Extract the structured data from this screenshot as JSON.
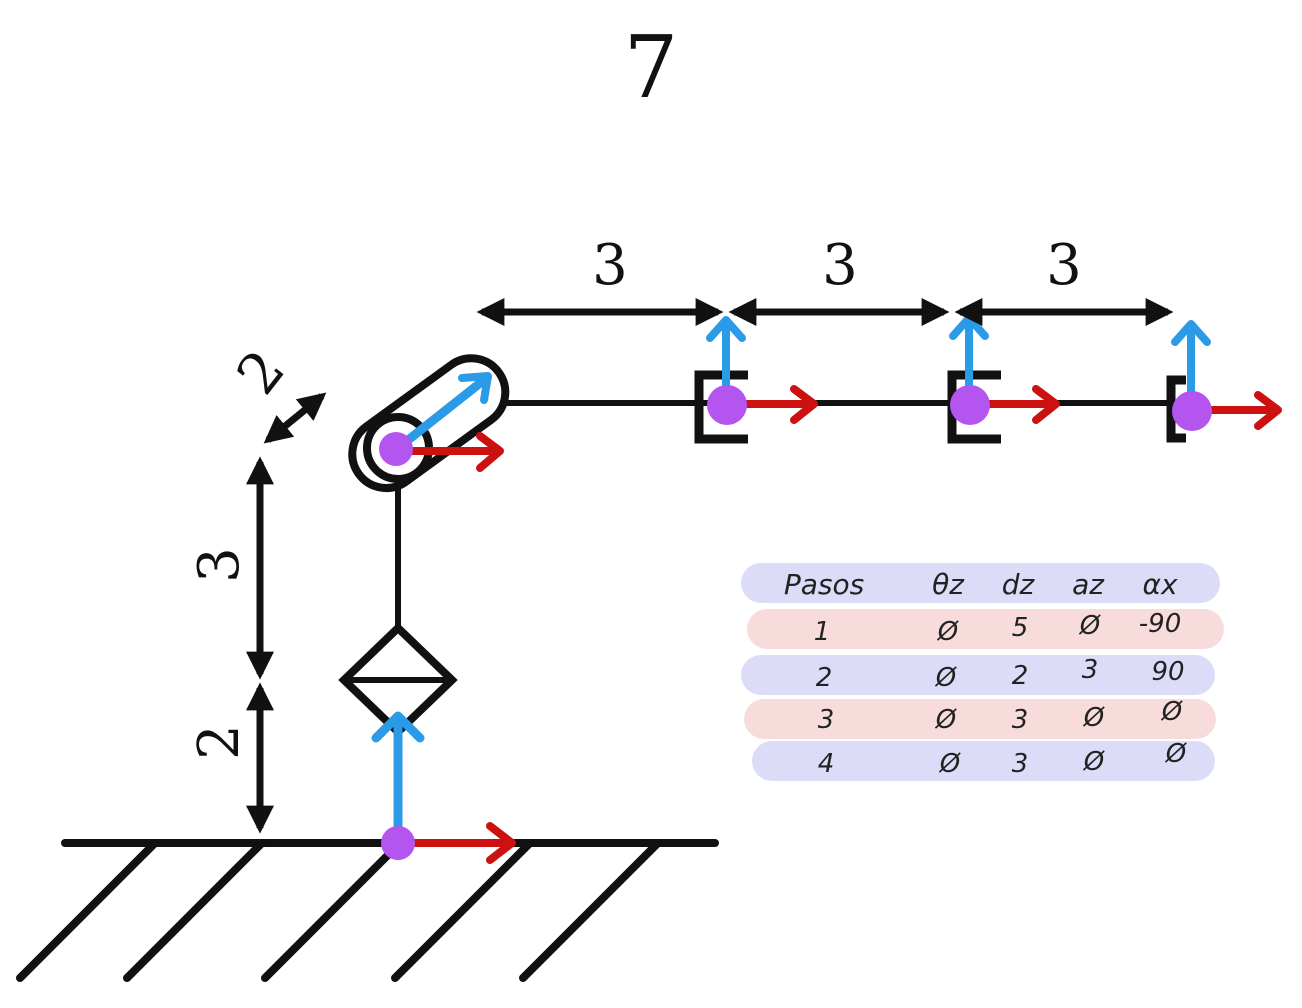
{
  "title": "7",
  "dimensions": {
    "link1": "3",
    "link2": "3",
    "link3": "3",
    "offset_diag": "2",
    "vert_upper": "3",
    "vert_lower": "2"
  },
  "colors": {
    "x_axis": "#cc1111",
    "z_axis": "#2b9be8",
    "origin": "#b455f0",
    "row_blue": "#dcdcf8",
    "row_pink": "#f8dcdc"
  },
  "dh_table": {
    "headers": [
      "Pasos",
      "θz",
      "dz",
      "az",
      "αx"
    ],
    "rows": [
      [
        "1",
        "Ø",
        "5",
        "Ø",
        "-90"
      ],
      [
        "2",
        "Ø",
        "2",
        "3",
        "90"
      ],
      [
        "3",
        "Ø",
        "3",
        "Ø",
        "Ø"
      ],
      [
        "4",
        "Ø",
        "3",
        "Ø",
        "Ø"
      ]
    ]
  }
}
